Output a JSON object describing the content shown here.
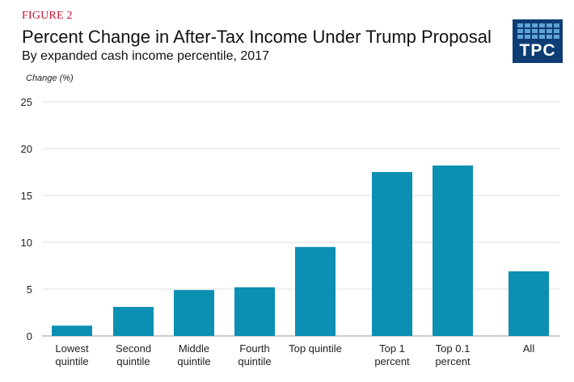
{
  "figure_label": "FIGURE 2",
  "title": "Percent Change in After-Tax Income Under Trump Proposal",
  "subtitle": "By expanded cash income percentile, 2017",
  "logo": {
    "text": "TPC",
    "bg_color": "#0d3d74",
    "tile_color": "#5fa3d6"
  },
  "chart_data": {
    "type": "bar",
    "ylabel": "Change  (%)",
    "xlabel": "",
    "ylim": [
      0,
      25
    ],
    "yticks": [
      0,
      5,
      10,
      15,
      20,
      25
    ],
    "grid": true,
    "bar_color": "#0b8fb3",
    "categories": [
      [
        "Lowest",
        "quintile"
      ],
      [
        "Second",
        "quintile"
      ],
      [
        "Middle",
        "quintile"
      ],
      [
        "Fourth",
        "quintile"
      ],
      [
        "Top quintile"
      ],
      [
        "Top 1",
        "percent"
      ],
      [
        "Top 0.1",
        "percent"
      ],
      [
        "All"
      ]
    ],
    "values": [
      1.1,
      3.1,
      4.9,
      5.2,
      9.5,
      17.5,
      18.2,
      6.9
    ]
  }
}
